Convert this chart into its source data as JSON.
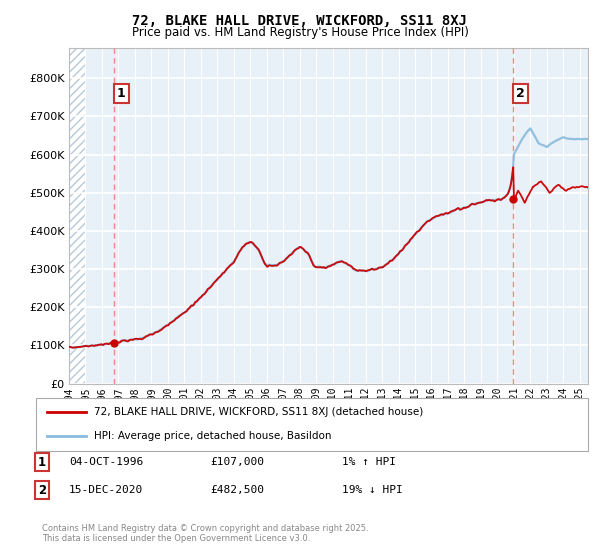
{
  "title": "72, BLAKE HALL DRIVE, WICKFORD, SS11 8XJ",
  "subtitle": "Price paid vs. HM Land Registry's House Price Index (HPI)",
  "legend_line1": "72, BLAKE HALL DRIVE, WICKFORD, SS11 8XJ (detached house)",
  "legend_line2": "HPI: Average price, detached house, Basildon",
  "annotation1_date": "04-OCT-1996",
  "annotation1_price": "£107,000",
  "annotation1_hpi": "1% ↑ HPI",
  "annotation2_date": "15-DEC-2020",
  "annotation2_price": "£482,500",
  "annotation2_hpi": "19% ↓ HPI",
  "xmin": 1994,
  "xmax": 2025.5,
  "ymin": 0,
  "ymax": 880000,
  "yticks": [
    0,
    100000,
    200000,
    300000,
    400000,
    500000,
    600000,
    700000,
    800000
  ],
  "ytick_labels": [
    "£0",
    "£100K",
    "£200K",
    "£300K",
    "£400K",
    "£500K",
    "£600K",
    "£700K",
    "£800K"
  ],
  "plot_bg_color": "#e8f0f8",
  "hatch_color": "#b8c8d8",
  "grid_color": "#ffffff",
  "line_color_red": "#cc0000",
  "line_color_blue": "#88bbdd",
  "dashed_line_color": "#ee8888",
  "sale1_x": 1996.75,
  "sale1_y": 107000,
  "sale2_x": 2020.96,
  "sale2_y": 482500,
  "footer": "Contains HM Land Registry data © Crown copyright and database right 2025.\nThis data is licensed under the Open Government Licence v3.0."
}
